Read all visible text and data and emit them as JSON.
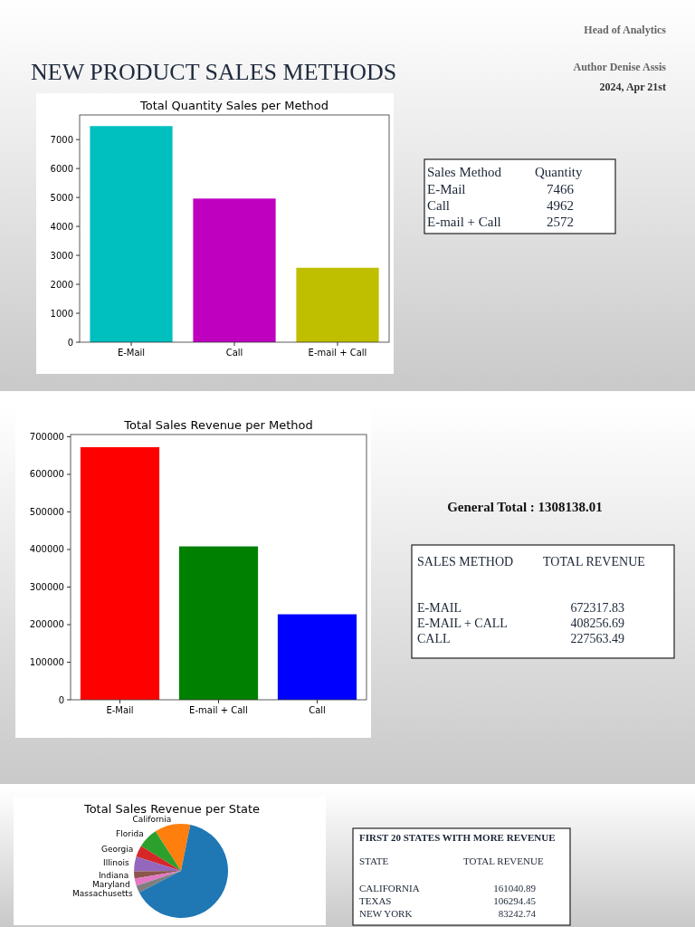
{
  "chart_data": [
    {
      "type": "other",
      "title": "NEW PRODUCT SALES METHODS",
      "annotations": [
        "Head of Analytics",
        "Author Denise Assis",
        "2024, Apr 21st"
      ]
    },
    {
      "type": "bar",
      "title": "Total Quantity Sales per Method",
      "categories": [
        "E-Mail",
        "Call",
        "E-mail + Call"
      ],
      "values": [
        7466,
        4962,
        2572
      ],
      "colors": [
        "#00bfbf",
        "#bf00bf",
        "#bfbf00"
      ],
      "ylim": [
        0,
        7850
      ],
      "yticks": [
        0,
        1000,
        2000,
        3000,
        4000,
        5000,
        6000,
        7000
      ]
    },
    {
      "type": "other",
      "categories": [
        "E-Mail",
        "Call",
        "E-mail + Call"
      ],
      "values": [
        7466,
        4962,
        2572
      ],
      "data_labels": true,
      "annotations": [
        "Sales Method",
        "Quantity"
      ]
    },
    {
      "type": "bar",
      "title": "Total Sales Revenue per Method",
      "categories": [
        "E-Mail",
        "E-mail + Call",
        "Call"
      ],
      "values": [
        672317.83,
        408256.69,
        227563.49
      ],
      "colors": [
        "#ff0000",
        "#008000",
        "#0000ff"
      ],
      "ylim": [
        0,
        706000
      ],
      "yticks": [
        0,
        100000,
        200000,
        300000,
        400000,
        500000,
        600000,
        700000
      ]
    },
    {
      "type": "other",
      "categories": [
        "E-MAIL",
        "E-MAIL + CALL",
        "CALL"
      ],
      "values": [
        672317.83,
        408256.69,
        227563.49
      ],
      "data_labels": true,
      "annotations": [
        "SALES METHOD",
        "TOTAL REVENUE",
        "General Total : 1308138.01"
      ]
    },
    {
      "type": "pie",
      "title": "Total Sales Revenue per State",
      "categories": [
        "California",
        "Florida",
        "Georgia",
        "Illinois",
        "Indiana",
        "Maryland",
        "Massachusetts",
        null
      ],
      "values": [
        12.3,
        7,
        4,
        5,
        2.5,
        2.5,
        2.5,
        64.2
      ],
      "colors": [
        "#ff7f0e",
        "#2ca02c",
        "#d62728",
        "#9467bd",
        "#8c564b",
        "#e377c2",
        "#7f7f7f",
        "#1f77b4"
      ]
    },
    {
      "type": "other",
      "title": "FIRST 20 STATES WITH MORE REVENUE",
      "categories": [
        "CALIFORNIA",
        "TEXAS",
        "NEW YORK"
      ],
      "values": [
        161040.89,
        106294.45,
        83242.74
      ],
      "data_labels": true,
      "annotations": [
        "STATE",
        "TOTAL REVENUE"
      ]
    }
  ]
}
